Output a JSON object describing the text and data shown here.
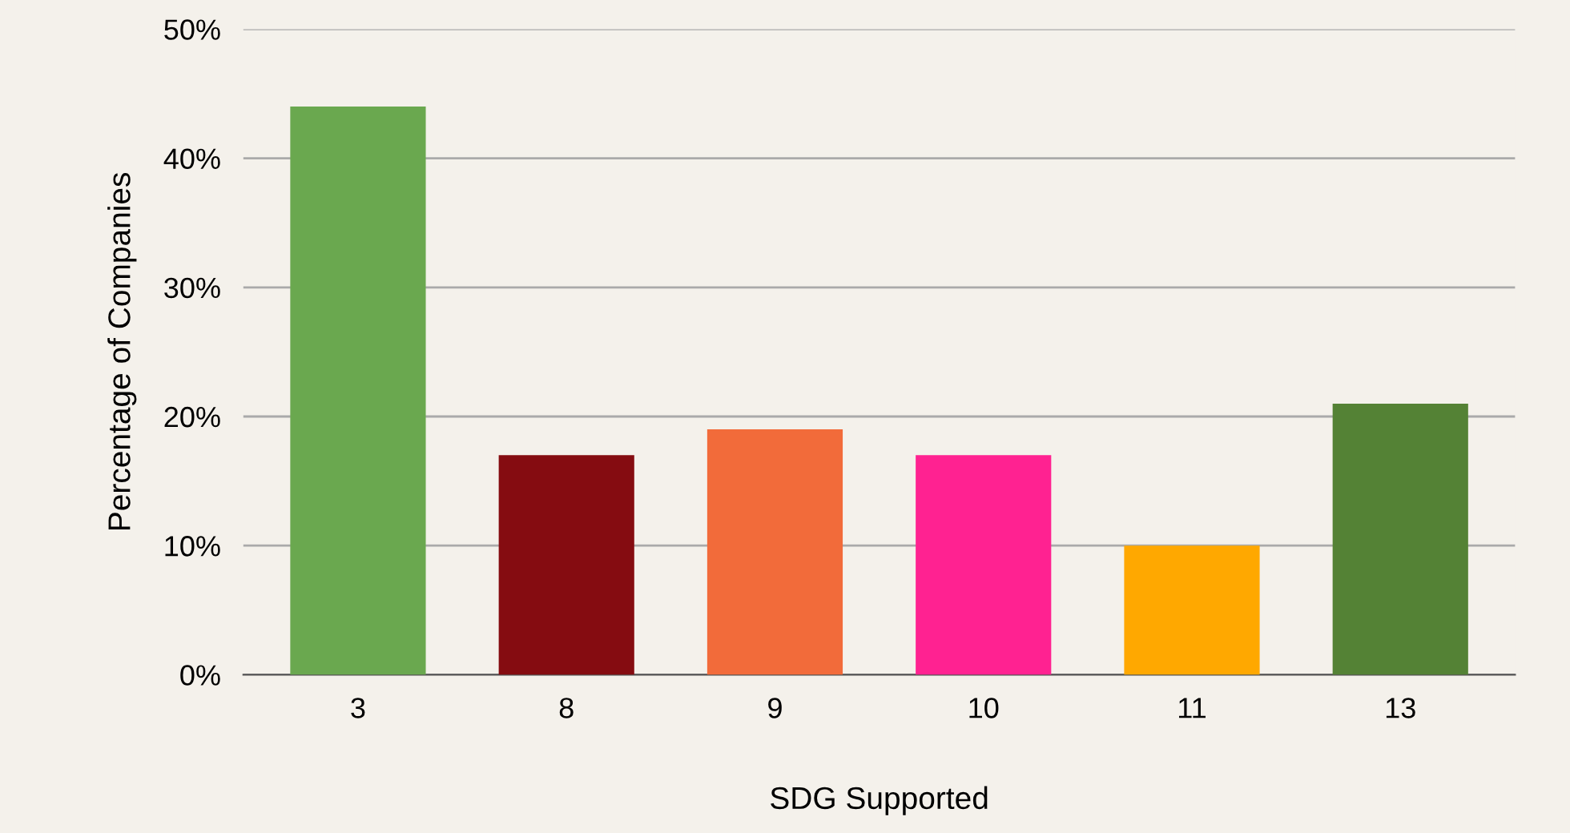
{
  "chart_data": {
    "type": "bar",
    "xlabel": "SDG Supported",
    "ylabel": "Percentage of Companies",
    "categories": [
      "3",
      "8",
      "9",
      "10",
      "11",
      "13"
    ],
    "values": [
      44,
      17,
      19,
      17,
      10,
      21
    ],
    "colors": [
      "#6aa84f",
      "#850c11",
      "#f26b3a",
      "#ff2291",
      "#ffa800",
      "#548235"
    ],
    "ylim": [
      0,
      50
    ],
    "yticks": [
      {
        "value": 0,
        "label": "0%"
      },
      {
        "value": 10,
        "label": "10%"
      },
      {
        "value": 20,
        "label": "20%"
      },
      {
        "value": 30,
        "label": "30%"
      },
      {
        "value": 40,
        "label": "40%"
      },
      {
        "value": 50,
        "label": "50%"
      }
    ],
    "grid": "y",
    "legend": false
  }
}
